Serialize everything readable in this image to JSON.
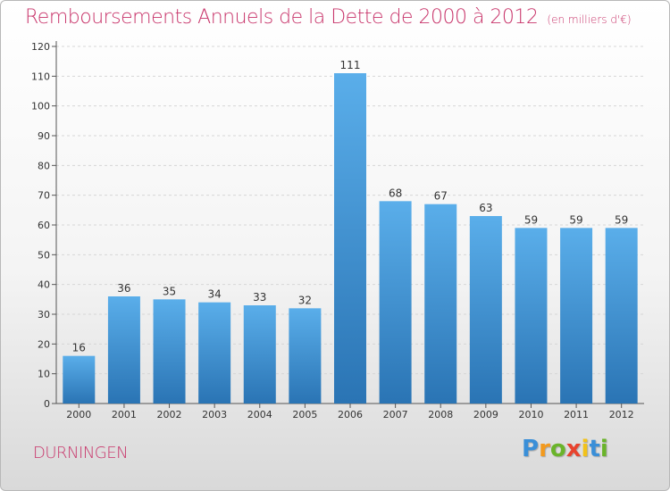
{
  "chart_data": {
    "type": "bar",
    "title": "Remboursements Annuels de la Dette de 2000 à 2012",
    "unit_note": "(en milliers d'€)",
    "categories": [
      "2000",
      "2001",
      "2002",
      "2003",
      "2004",
      "2005",
      "2006",
      "2007",
      "2008",
      "2009",
      "2010",
      "2011",
      "2012"
    ],
    "values": [
      16,
      36,
      35,
      34,
      33,
      32,
      111,
      68,
      67,
      63,
      59,
      59,
      59
    ],
    "data_labels": [
      "16",
      "36",
      "35",
      "34",
      "33",
      "32",
      "111",
      "68",
      "67",
      "63",
      "59",
      "59",
      "59"
    ],
    "yticks": [
      "0",
      "10",
      "20",
      "30",
      "40",
      "50",
      "60",
      "70",
      "80",
      "90",
      "100",
      "110",
      "120"
    ],
    "ylim": [
      0,
      120
    ],
    "ytick_step": 10,
    "grid": true,
    "bar_color_top": "#5aaeea",
    "bar_color_bottom": "#2a74b4"
  },
  "commune": "DURNINGEN",
  "logo": {
    "letters": [
      "P",
      "r",
      "o",
      "x",
      "i",
      "t",
      "i"
    ],
    "colors": [
      "#3a8fd8",
      "#f39a1e",
      "#6ab42a",
      "#e8432e",
      "#f2c21a",
      "#3a8fd8",
      "#6ab42a"
    ]
  }
}
